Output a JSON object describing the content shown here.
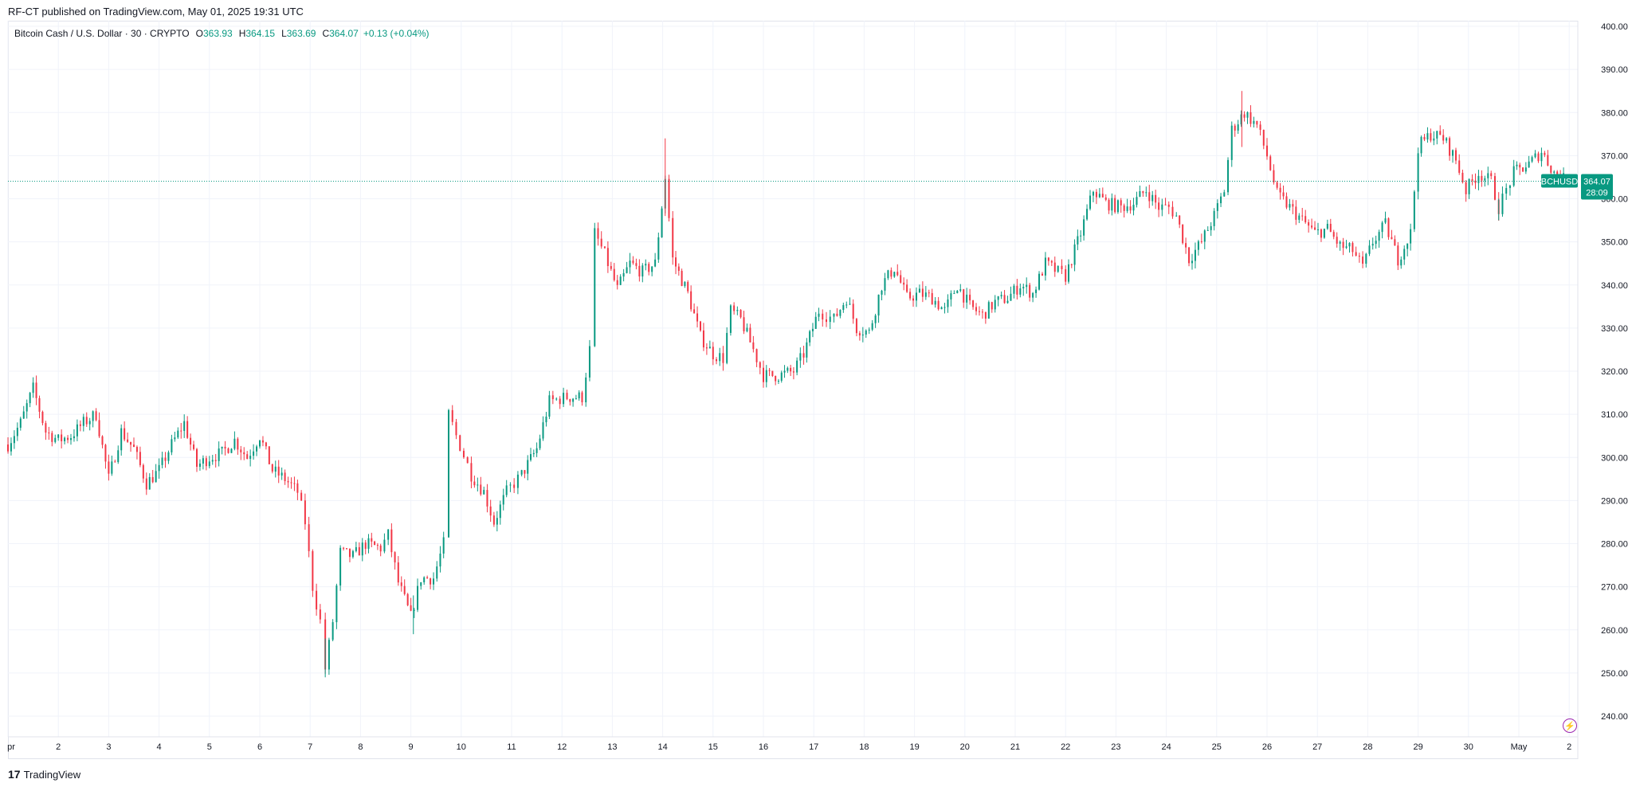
{
  "header": {
    "published_text": "RF-CT published on TradingView.com, May 01, 2025 19:31 UTC"
  },
  "legend": {
    "symbol": "Bitcoin Cash / U.S. Dollar · 30 · CRYPTO",
    "open_label": "O",
    "open": "363.93",
    "high_label": "H",
    "high": "364.15",
    "low_label": "L",
    "low": "363.69",
    "close_label": "C",
    "close": "364.07",
    "change": "+0.13 (+0.04%)"
  },
  "price_tag": {
    "ticker": "BCHUSD",
    "price": "364.07",
    "countdown": "28:09"
  },
  "footer": {
    "logo": "17",
    "brand": "TradingView"
  },
  "colors": {
    "up": "#089981",
    "down": "#f23645",
    "grid": "#f0f3fa",
    "text": "#131722"
  },
  "icons": {
    "alert": "lightning-icon"
  },
  "chart_data": {
    "type": "candlestick",
    "interval": "30",
    "ylim": [
      236,
      402
    ],
    "y_ticks": [
      "240.00",
      "250.00",
      "260.00",
      "270.00",
      "280.00",
      "290.00",
      "300.00",
      "310.00",
      "320.00",
      "330.00",
      "340.00",
      "350.00",
      "360.00",
      "370.00",
      "380.00",
      "390.00",
      "400.00"
    ],
    "x_ticks": [
      "pr",
      "2",
      "3",
      "4",
      "5",
      "6",
      "7",
      "8",
      "9",
      "10",
      "11",
      "12",
      "13",
      "14",
      "15",
      "16",
      "17",
      "18",
      "19",
      "20",
      "21",
      "22",
      "23",
      "24",
      "25",
      "26",
      "27",
      "28",
      "29",
      "30",
      "May",
      "2"
    ],
    "last_price": 364.07,
    "price_path": [
      [
        1.0,
        303
      ],
      [
        1.25,
        308
      ],
      [
        1.5,
        316
      ],
      [
        1.75,
        306
      ],
      [
        2.0,
        304
      ],
      [
        2.25,
        305
      ],
      [
        2.5,
        308
      ],
      [
        2.75,
        310
      ],
      [
        3.0,
        295
      ],
      [
        3.25,
        306
      ],
      [
        3.5,
        302
      ],
      [
        3.75,
        294
      ],
      [
        4.0,
        297
      ],
      [
        4.25,
        303
      ],
      [
        4.5,
        308
      ],
      [
        4.75,
        298
      ],
      [
        5.0,
        300
      ],
      [
        5.25,
        301
      ],
      [
        5.5,
        304
      ],
      [
        5.75,
        300
      ],
      [
        6.0,
        305
      ],
      [
        6.25,
        297
      ],
      [
        6.5,
        295
      ],
      [
        6.75,
        292
      ],
      [
        6.9,
        285
      ],
      [
        7.05,
        270
      ],
      [
        7.2,
        262
      ],
      [
        7.3,
        251
      ],
      [
        7.45,
        262
      ],
      [
        7.6,
        278
      ],
      [
        7.85,
        277
      ],
      [
        8.1,
        280
      ],
      [
        8.4,
        279
      ],
      [
        8.55,
        282
      ],
      [
        8.75,
        271
      ],
      [
        9.0,
        263
      ],
      [
        9.2,
        272
      ],
      [
        9.45,
        272
      ],
      [
        9.65,
        280
      ],
      [
        9.75,
        310
      ],
      [
        9.9,
        305
      ],
      [
        10.2,
        296
      ],
      [
        10.45,
        292
      ],
      [
        10.65,
        285
      ],
      [
        10.9,
        292
      ],
      [
        11.2,
        296
      ],
      [
        11.5,
        302
      ],
      [
        11.75,
        313
      ],
      [
        12.1,
        314
      ],
      [
        12.4,
        314
      ],
      [
        12.55,
        325
      ],
      [
        12.65,
        352
      ],
      [
        12.85,
        347
      ],
      [
        13.1,
        339
      ],
      [
        13.35,
        345
      ],
      [
        13.6,
        343
      ],
      [
        13.85,
        345
      ],
      [
        14.05,
        365
      ],
      [
        14.2,
        346
      ],
      [
        14.5,
        338
      ],
      [
        14.75,
        328
      ],
      [
        15.0,
        324
      ],
      [
        15.2,
        323
      ],
      [
        15.35,
        334
      ],
      [
        15.55,
        332
      ],
      [
        15.8,
        325
      ],
      [
        16.0,
        319
      ],
      [
        16.3,
        319
      ],
      [
        16.6,
        320
      ],
      [
        16.8,
        324
      ],
      [
        17.1,
        334
      ],
      [
        17.4,
        332
      ],
      [
        17.65,
        337
      ],
      [
        17.85,
        330
      ],
      [
        18.1,
        329
      ],
      [
        18.35,
        340
      ],
      [
        18.6,
        344
      ],
      [
        18.85,
        337
      ],
      [
        19.1,
        338
      ],
      [
        19.35,
        337
      ],
      [
        19.6,
        334
      ],
      [
        19.85,
        340
      ],
      [
        20.1,
        335
      ],
      [
        20.35,
        333
      ],
      [
        20.6,
        336
      ],
      [
        20.85,
        337
      ],
      [
        21.1,
        340
      ],
      [
        21.35,
        338
      ],
      [
        21.6,
        345
      ],
      [
        21.85,
        343
      ],
      [
        22.0,
        342
      ],
      [
        22.3,
        352
      ],
      [
        22.55,
        362
      ],
      [
        22.8,
        359
      ],
      [
        23.1,
        358
      ],
      [
        23.35,
        359
      ],
      [
        23.6,
        362
      ],
      [
        23.85,
        358
      ],
      [
        24.05,
        358
      ],
      [
        24.2,
        356
      ],
      [
        24.45,
        346
      ],
      [
        24.7,
        350
      ],
      [
        24.95,
        356
      ],
      [
        25.15,
        362
      ],
      [
        25.3,
        376
      ],
      [
        25.55,
        380
      ],
      [
        25.8,
        377
      ],
      [
        26.0,
        370
      ],
      [
        26.2,
        361
      ],
      [
        26.45,
        358
      ],
      [
        26.7,
        355
      ],
      [
        26.95,
        352
      ],
      [
        27.2,
        353
      ],
      [
        27.45,
        349
      ],
      [
        27.7,
        348
      ],
      [
        27.9,
        344
      ],
      [
        28.1,
        350
      ],
      [
        28.35,
        354
      ],
      [
        28.6,
        346
      ],
      [
        28.85,
        352
      ],
      [
        29.0,
        372
      ],
      [
        29.25,
        375
      ],
      [
        29.5,
        374
      ],
      [
        29.75,
        369
      ],
      [
        29.95,
        362
      ],
      [
        30.2,
        366
      ],
      [
        30.45,
        364
      ],
      [
        30.6,
        358
      ],
      [
        30.9,
        366
      ],
      [
        31.2,
        368
      ],
      [
        31.45,
        371
      ],
      [
        31.7,
        366
      ],
      [
        31.95,
        364.07
      ]
    ]
  }
}
